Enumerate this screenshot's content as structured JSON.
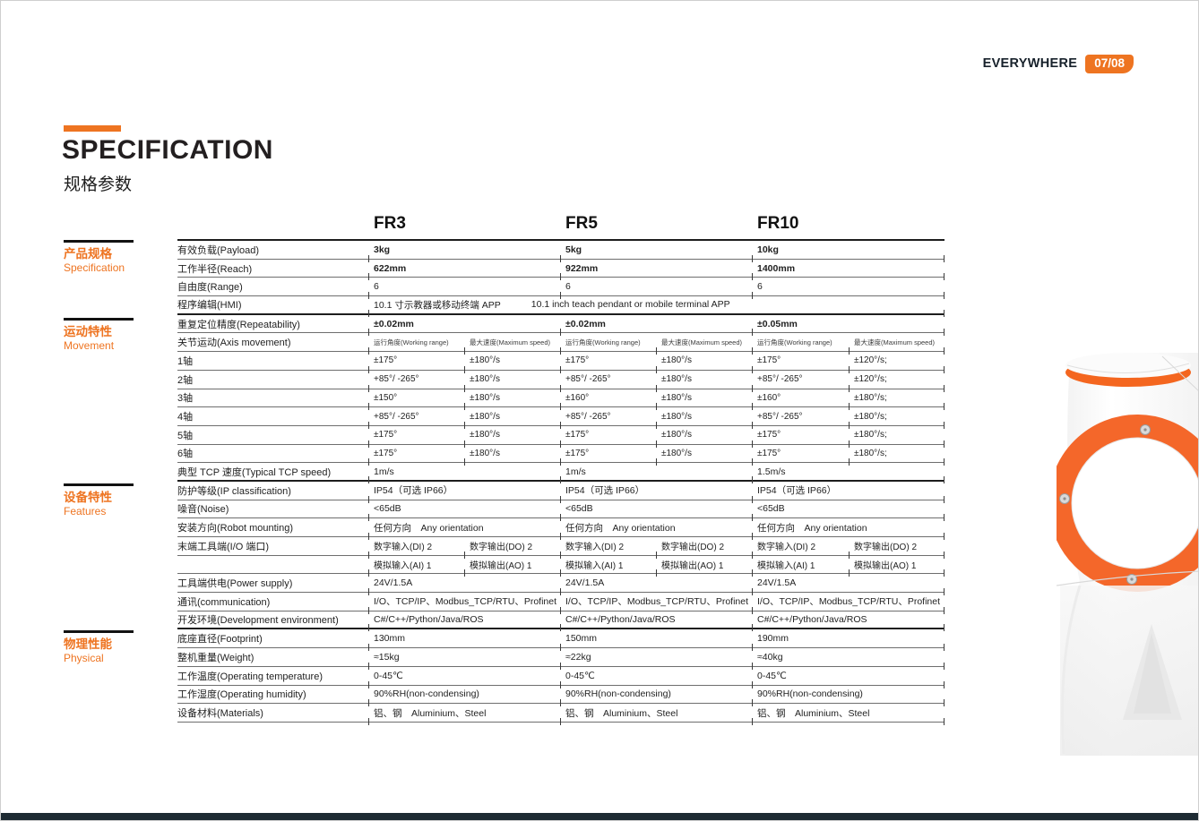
{
  "page": {
    "brand": "EVERYWHERE",
    "page_badge": "07/08",
    "title": "SPECIFICATION",
    "subtitle": "规格参数"
  },
  "colors": {
    "accent": "#ee7421",
    "footer_bar": "#1e2b33",
    "ring_orange": "#f4672a"
  },
  "models": [
    "FR3",
    "FR5",
    "FR10"
  ],
  "sidebar": {
    "sections": [
      {
        "zh": "产品规格",
        "en": "Specification"
      },
      {
        "zh": "运动特性",
        "en": "Movement"
      },
      {
        "zh": "设备特性",
        "en": "Features"
      },
      {
        "zh": "物理性能",
        "en": "Physical"
      }
    ]
  },
  "table": {
    "axis_subheaders": [
      "运行角度(Working range)",
      "最大速度(Maximum speed)"
    ],
    "rows": [
      {
        "label": "有效负载(Payload)",
        "type": "triple",
        "bold": true,
        "values": [
          "3kg",
          "5kg",
          "10kg"
        ]
      },
      {
        "label": "工作半径(Reach)",
        "type": "triple",
        "bold": true,
        "values": [
          "622mm",
          "922mm",
          "1400mm"
        ]
      },
      {
        "label": "自由度(Range)",
        "type": "triple",
        "values": [
          "6",
          "6",
          "6"
        ]
      },
      {
        "label": "程序编辑(HMI)",
        "type": "span",
        "thickBottom": true,
        "values": [
          "10.1 寸示教器或移动终端 APP",
          "10.1 inch teach pendant or mobile terminal APP"
        ]
      },
      {
        "label": "重复定位精度(Repeatability)",
        "type": "triple",
        "bold": true,
        "values": [
          "±0.02mm",
          "±0.02mm",
          "±0.05mm"
        ]
      },
      {
        "label": "关节运动(Axis movement)",
        "type": "subheader"
      },
      {
        "label": "1轴",
        "type": "pairs",
        "values": [
          [
            "±175°",
            "±180°/s"
          ],
          [
            "±175°",
            "±180°/s"
          ],
          [
            "±175°",
            "±120°/s;"
          ]
        ]
      },
      {
        "label": "2轴",
        "type": "pairs",
        "values": [
          [
            "+85°/ -265°",
            "±180°/s"
          ],
          [
            "+85°/ -265°",
            "±180°/s"
          ],
          [
            "+85°/ -265°",
            "±120°/s;"
          ]
        ]
      },
      {
        "label": "3轴",
        "type": "pairs",
        "values": [
          [
            "±150°",
            "±180°/s"
          ],
          [
            "±160°",
            "±180°/s"
          ],
          [
            "±160°",
            "±180°/s;"
          ]
        ]
      },
      {
        "label": "4轴",
        "type": "pairs",
        "values": [
          [
            "+85°/ -265°",
            "±180°/s"
          ],
          [
            "+85°/ -265°",
            "±180°/s"
          ],
          [
            "+85°/ -265°",
            "±180°/s;"
          ]
        ]
      },
      {
        "label": "5轴",
        "type": "pairs",
        "values": [
          [
            "±175°",
            "±180°/s"
          ],
          [
            "±175°",
            "±180°/s"
          ],
          [
            "±175°",
            "±180°/s;"
          ]
        ]
      },
      {
        "label": "6轴",
        "type": "pairs",
        "values": [
          [
            "±175°",
            "±180°/s"
          ],
          [
            "±175°",
            "±180°/s"
          ],
          [
            "±175°",
            "±180°/s;"
          ]
        ]
      },
      {
        "label": "典型 TCP 速度(Typical TCP speed)",
        "type": "triple",
        "thickBottom": true,
        "values": [
          "1m/s",
          "1m/s",
          "1.5m/s"
        ]
      },
      {
        "label": "防护等级(IP classification)",
        "type": "triple",
        "values": [
          "IP54（可选 IP66）",
          "IP54（可选 IP66）",
          "IP54（可选 IP66）"
        ]
      },
      {
        "label": "噪音(Noise)",
        "type": "triple",
        "values": [
          "<65dB",
          "<65dB",
          "<65dB"
        ]
      },
      {
        "label": "安装方向(Robot mounting)",
        "type": "triple",
        "values": [
          "任何方向　Any orientation",
          "任何方向　Any orientation",
          "任何方向　Any orientation"
        ]
      },
      {
        "label": "末端工具端(I/O 端口)",
        "type": "pairs",
        "values": [
          [
            "数字输入(DI) 2",
            "数字输出(DO) 2"
          ],
          [
            "数字输入(DI) 2",
            "数字输出(DO) 2"
          ],
          [
            "数字输入(DI) 2",
            "数字输出(DO) 2"
          ]
        ]
      },
      {
        "label": "",
        "type": "pairs",
        "values": [
          [
            "模拟输入(AI) 1",
            "模拟输出(AO) 1"
          ],
          [
            "模拟输入(AI) 1",
            "模拟输出(AO) 1"
          ],
          [
            "模拟输入(AI) 1",
            "模拟输出(AO) 1"
          ]
        ]
      },
      {
        "label": "工具端供电(Power supply)",
        "type": "triple",
        "values": [
          "24V/1.5A",
          "24V/1.5A",
          "24V/1.5A"
        ]
      },
      {
        "label": "通讯(communication)",
        "type": "triple",
        "values": [
          "I/O、TCP/IP、Modbus_TCP/RTU、Profinet",
          "I/O、TCP/IP、Modbus_TCP/RTU、Profinet",
          "I/O、TCP/IP、Modbus_TCP/RTU、Profinet"
        ]
      },
      {
        "label": "开发环境(Development environment)",
        "type": "triple",
        "thickBottom": true,
        "values": [
          "C#/C++/Python/Java/ROS",
          "C#/C++/Python/Java/ROS",
          "C#/C++/Python/Java/ROS"
        ]
      },
      {
        "label": "底座直径(Footprint)",
        "type": "triple",
        "values": [
          "130mm",
          "150mm",
          "190mm"
        ]
      },
      {
        "label": "整机重量(Weight)",
        "type": "triple",
        "values": [
          "≈15kg",
          "≈22kg",
          "≈40kg"
        ]
      },
      {
        "label": "工作温度(Operating temperature)",
        "type": "triple",
        "values": [
          "0-45℃",
          "0-45℃",
          "0-45℃"
        ]
      },
      {
        "label": "工作湿度(Operating humidity)",
        "type": "triple",
        "values": [
          "90%RH(non-condensing)",
          "90%RH(non-condensing)",
          "90%RH(non-condensing)"
        ]
      },
      {
        "label": "设备材料(Materials)",
        "type": "triple",
        "values": [
          "铝、钢　Aluminium、Steel",
          "铝、钢　Aluminium、Steel",
          "铝、钢　Aluminium、Steel"
        ]
      }
    ]
  }
}
